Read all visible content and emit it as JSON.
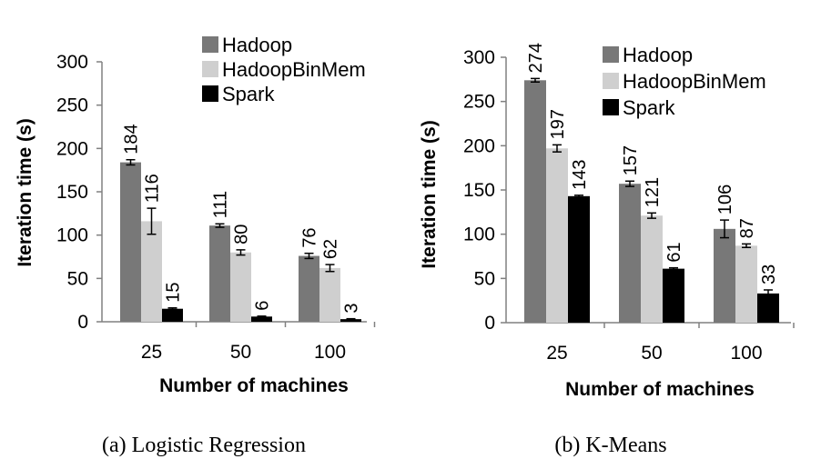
{
  "colors": {
    "hadoop": "#787878",
    "hadoopbinmem": "#cfcfcf",
    "spark": "#000000",
    "axis": "#808080",
    "errorbar": "#000000"
  },
  "chart_data": [
    {
      "type": "bar",
      "title": "",
      "caption": "(a)  Logistic Regression",
      "xlabel": "Number of machines",
      "ylabel": "Iteration time (s)",
      "ylim": [
        0,
        300
      ],
      "yticks": [
        "0",
        "50",
        "100",
        "150",
        "200",
        "250",
        "300"
      ],
      "grid": false,
      "legend_position": "top-right",
      "categories": [
        "25",
        "50",
        "100"
      ],
      "series": [
        {
          "name": "Hadoop",
          "color_key": "hadoop",
          "values": [
            184,
            111,
            76
          ],
          "labels": [
            "184",
            "111",
            "76"
          ],
          "errors": [
            3,
            2,
            3
          ]
        },
        {
          "name": "HadoopBinMem",
          "color_key": "hadoopbinmem",
          "values": [
            116,
            80,
            62
          ],
          "labels": [
            "116",
            "80",
            "62"
          ],
          "errors": [
            15,
            3,
            4
          ]
        },
        {
          "name": "Spark",
          "color_key": "spark",
          "values": [
            15,
            6,
            3
          ],
          "labels": [
            "15",
            "6",
            "3"
          ],
          "errors": [
            1,
            0.5,
            0.5
          ]
        }
      ]
    },
    {
      "type": "bar",
      "title": "",
      "caption": "(b)  K-Means",
      "xlabel": "Number of machines",
      "ylabel": "Iteration time (s)",
      "ylim": [
        0,
        300
      ],
      "yticks": [
        "0",
        "50",
        "100",
        "150",
        "200",
        "250",
        "300"
      ],
      "grid": false,
      "legend_position": "top-right",
      "categories": [
        "25",
        "50",
        "100"
      ],
      "series": [
        {
          "name": "Hadoop",
          "color_key": "hadoop",
          "values": [
            274,
            157,
            106
          ],
          "labels": [
            "274",
            "157",
            "106"
          ],
          "errors": [
            2,
            3,
            10
          ]
        },
        {
          "name": "HadoopBinMem",
          "color_key": "hadoopbinmem",
          "values": [
            197,
            121,
            87
          ],
          "labels": [
            "197",
            "121",
            "87"
          ],
          "errors": [
            4,
            3,
            2
          ]
        },
        {
          "name": "Spark",
          "color_key": "spark",
          "values": [
            143,
            61,
            33
          ],
          "labels": [
            "143",
            "61",
            "33"
          ],
          "errors": [
            1,
            1,
            4
          ]
        }
      ]
    }
  ]
}
